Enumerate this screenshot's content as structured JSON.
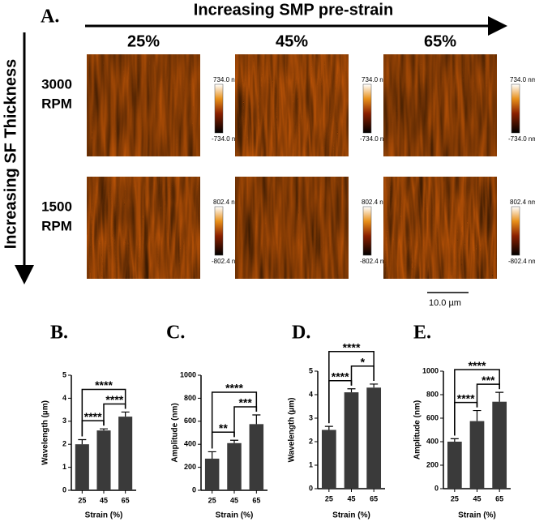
{
  "panel_a": {
    "letter": "A.",
    "x_arrow_label": "Increasing SMP pre-strain",
    "columns": [
      "25%",
      "45%",
      "65%"
    ],
    "y_arrow_label": "Increasing SF Thickness",
    "rows": [
      {
        "label": [
          "3000",
          "RPM"
        ],
        "scale_max": "734.0 nm",
        "scale_min": "-734.0 nm"
      },
      {
        "label": [
          "1500",
          "RPM"
        ],
        "scale_max": "802.4 nm",
        "scale_min": "-802.4 nm"
      }
    ],
    "scale_bar": "10.0 µm"
  },
  "chart_data": [
    {
      "type": "bar",
      "title": "B.",
      "y_label": "Wavelength (µm)",
      "x_label": "Strain (%)",
      "categories": [
        "25",
        "45",
        "65"
      ],
      "values": [
        2.0,
        2.6,
        3.2
      ],
      "errors": [
        0.2,
        0.07,
        0.2
      ],
      "color": "#3a3a3a",
      "ylim": [
        0,
        5
      ],
      "yticks": [
        0,
        1,
        2,
        3,
        4,
        5
      ],
      "annotations": [
        {
          "pair": [
            "25",
            "45"
          ],
          "label": "****"
        },
        {
          "pair": [
            "45",
            "65"
          ],
          "label": "****"
        },
        {
          "pair": [
            "25",
            "65"
          ],
          "label": "****"
        }
      ]
    },
    {
      "type": "bar",
      "title": "C.",
      "y_label": "Amplitude (nm)",
      "x_label": "Strain (%)",
      "categories": [
        "25",
        "45",
        "65"
      ],
      "values": [
        275,
        410,
        575
      ],
      "errors": [
        60,
        25,
        80
      ],
      "color": "#3a3a3a",
      "ylim": [
        0,
        1000
      ],
      "yticks": [
        0,
        200,
        400,
        600,
        800,
        1000
      ],
      "annotations": [
        {
          "pair": [
            "25",
            "45"
          ],
          "label": "**"
        },
        {
          "pair": [
            "45",
            "65"
          ],
          "label": "***"
        },
        {
          "pair": [
            "25",
            "65"
          ],
          "label": "****"
        }
      ]
    },
    {
      "type": "bar",
      "title": "D.",
      "y_label": "Wavelength (µm)",
      "x_label": "Strain (%)",
      "categories": [
        "25",
        "45",
        "65"
      ],
      "values": [
        2.5,
        4.1,
        4.3
      ],
      "errors": [
        0.15,
        0.15,
        0.15
      ],
      "color": "#3a3a3a",
      "ylim": [
        0,
        5
      ],
      "yticks": [
        0,
        1,
        2,
        3,
        4,
        5
      ],
      "annotations": [
        {
          "pair": [
            "25",
            "45"
          ],
          "label": "****"
        },
        {
          "pair": [
            "45",
            "65"
          ],
          "label": "*"
        },
        {
          "pair": [
            "25",
            "65"
          ],
          "label": "****"
        }
      ]
    },
    {
      "type": "bar",
      "title": "E.",
      "y_label": "Amplitude (nm)",
      "x_label": "Strain (%)",
      "categories": [
        "25",
        "45",
        "65"
      ],
      "values": [
        400,
        575,
        740
      ],
      "errors": [
        25,
        90,
        80
      ],
      "color": "#3a3a3a",
      "ylim": [
        0,
        1000
      ],
      "yticks": [
        0,
        200,
        400,
        600,
        800,
        1000
      ],
      "annotations": [
        {
          "pair": [
            "25",
            "45"
          ],
          "label": "****"
        },
        {
          "pair": [
            "45",
            "65"
          ],
          "label": "***"
        },
        {
          "pair": [
            "25",
            "65"
          ],
          "label": "****"
        }
      ]
    }
  ]
}
